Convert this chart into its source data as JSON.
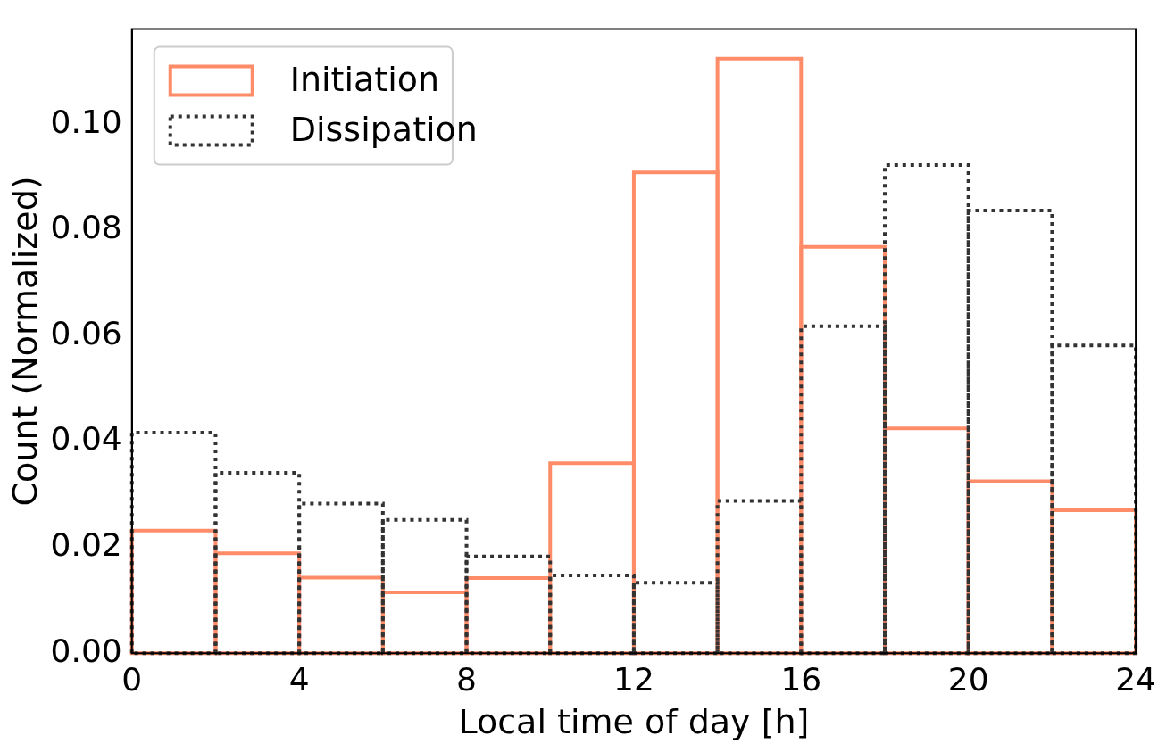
{
  "chart_data": {
    "type": "histogram",
    "xlabel": "Local time of day [h]",
    "ylabel": "Count (Normalized)",
    "bins": [
      0,
      2,
      4,
      6,
      8,
      10,
      12,
      14,
      16,
      18,
      20,
      22,
      24
    ],
    "series": [
      {
        "name": "Initiation",
        "color": "#ff8c69",
        "line_style": "solid",
        "values": [
          0.0232,
          0.0189,
          0.0143,
          0.0115,
          0.0142,
          0.0359,
          0.0909,
          0.1124,
          0.0768,
          0.0425,
          0.0325,
          0.027
        ]
      },
      {
        "name": "Dissipation",
        "color": "#333333",
        "line_style": "dotted",
        "values": [
          0.0417,
          0.0341,
          0.0283,
          0.0252,
          0.0183,
          0.0147,
          0.0133,
          0.0288,
          0.0618,
          0.0923,
          0.0837,
          0.0582
        ]
      }
    ],
    "xlim": [
      0,
      24
    ],
    "xticks": [
      0,
      4,
      8,
      12,
      16,
      20,
      24
    ],
    "ylim": [
      0,
      0.118
    ],
    "yticks": [
      {
        "value": 0,
        "label": "0.00"
      },
      {
        "value": 0.02,
        "label": "0.02"
      },
      {
        "value": 0.04,
        "label": "0.04"
      },
      {
        "value": 0.06,
        "label": "0.06"
      },
      {
        "value": 0.08,
        "label": "0.08"
      },
      {
        "value": 0.1,
        "label": "0.10"
      }
    ],
    "grid": false,
    "legend": "top left"
  }
}
